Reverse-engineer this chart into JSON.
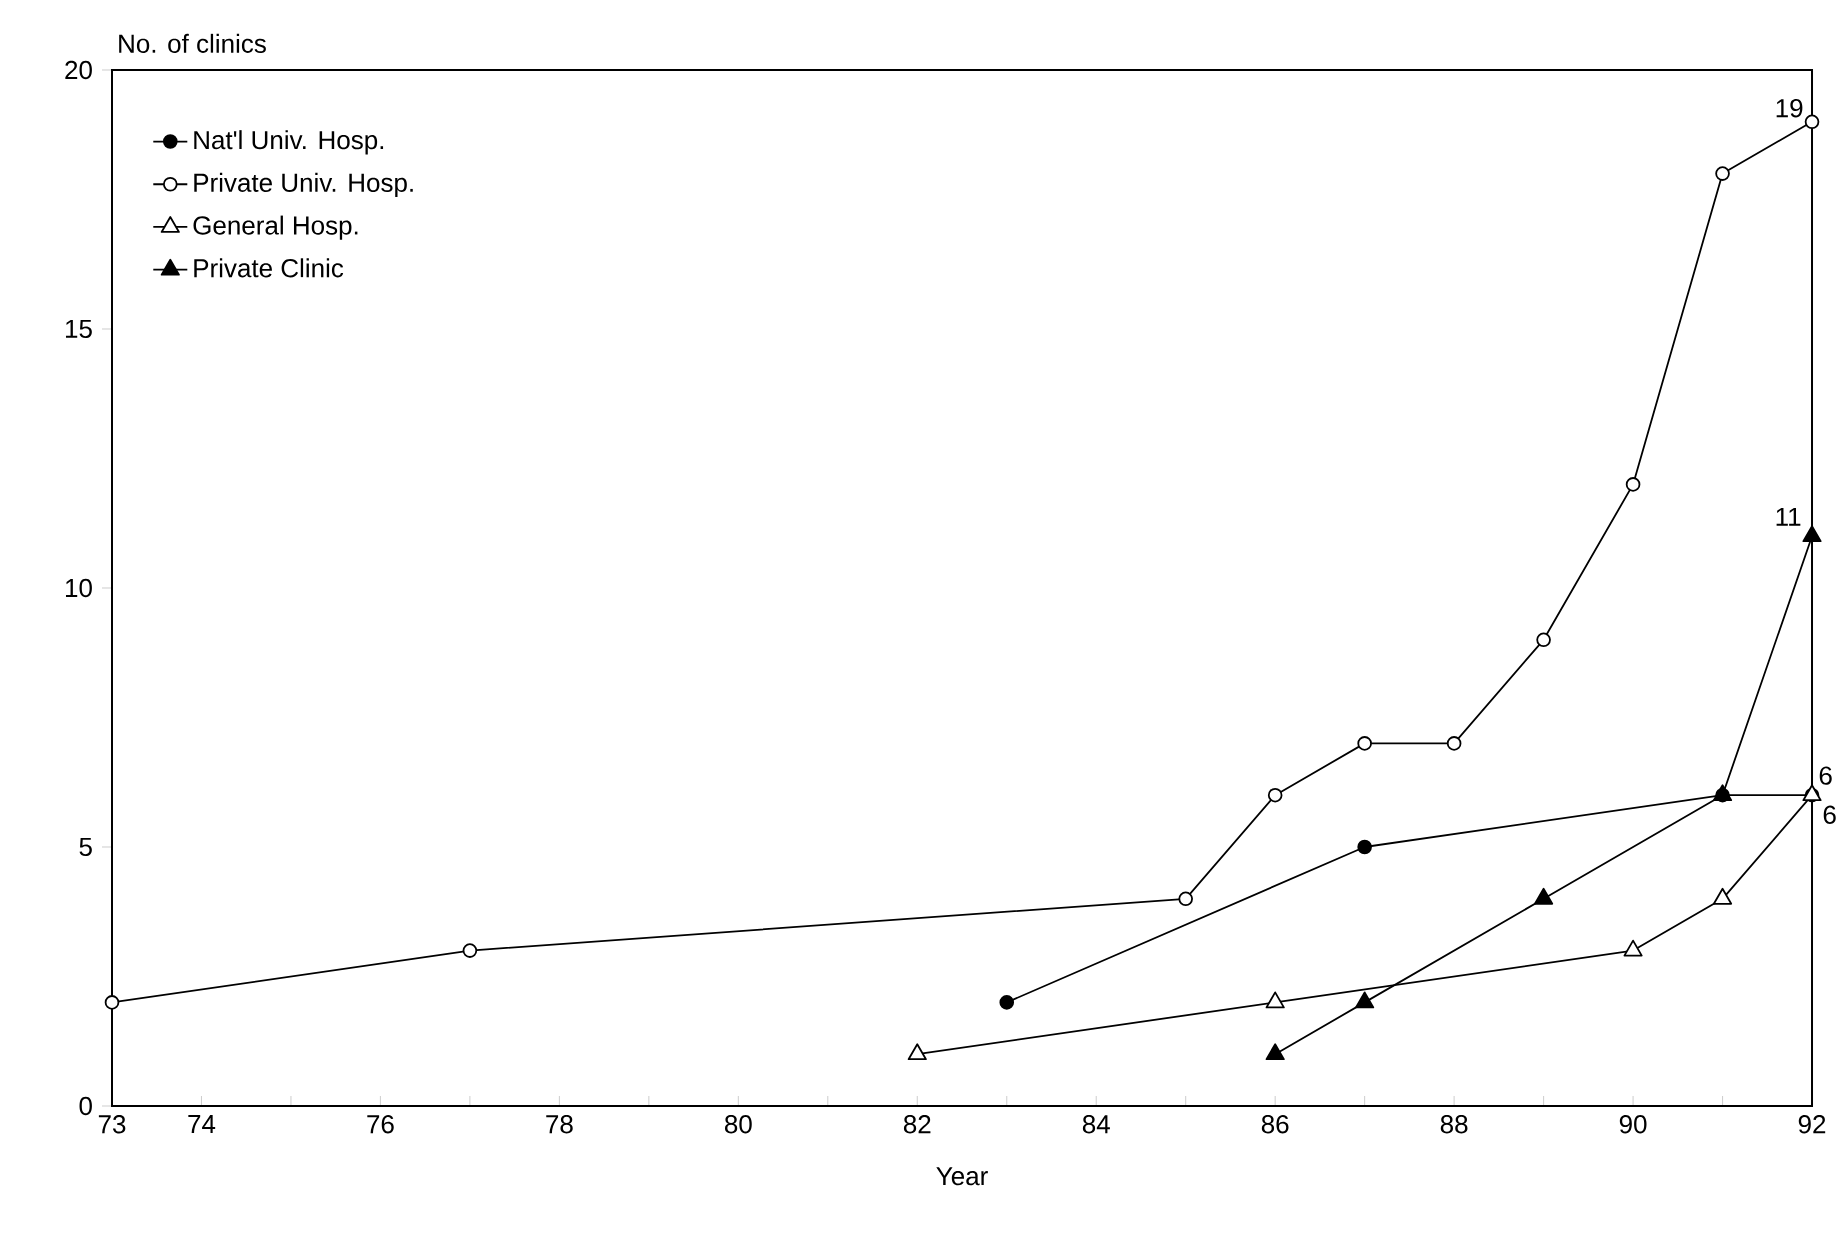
{
  "chart_data": {
    "type": "line",
    "xlabel": "Year",
    "ylabel": "No. of clinics",
    "xlim": [
      73,
      92
    ],
    "ylim": [
      0,
      20
    ],
    "xticks": [
      73,
      74,
      {
        "value": 75,
        "label": null
      },
      76,
      {
        "value": 77,
        "label": null
      },
      78,
      {
        "value": 79,
        "label": null
      },
      80,
      {
        "value": 81,
        "label": null
      },
      82,
      {
        "value": 83,
        "label": null
      },
      84,
      {
        "value": 85,
        "label": null
      },
      86,
      {
        "value": 87,
        "label": null
      },
      88,
      {
        "value": 89,
        "label": null
      },
      90,
      {
        "value": 91,
        "label": null
      },
      92
    ],
    "yticks": [
      0,
      5,
      10,
      15,
      20
    ],
    "grid": false,
    "legend": "top left",
    "line_style": "solid",
    "series": [
      {
        "name": "Nat'l Univ. Hosp.",
        "color": "#000000",
        "marker": "circle",
        "x": [
          83,
          87,
          91,
          92
        ],
        "values": [
          2,
          5,
          6,
          6
        ],
        "value_labels": [
          null,
          null,
          null,
          "6"
        ]
      },
      {
        "name": "Private Univ. Hosp.",
        "color": "#000000",
        "marker": "circle",
        "x": [
          73,
          77,
          85,
          86,
          87,
          88,
          89,
          90,
          91,
          92
        ],
        "values": [
          2,
          3,
          4,
          6,
          7,
          7,
          9,
          12,
          18,
          19
        ],
        "value_labels": [
          null,
          null,
          null,
          null,
          null,
          null,
          null,
          null,
          null,
          "19"
        ]
      },
      {
        "name": "General Hosp.",
        "color": "#000000",
        "marker": "triangle",
        "x": [
          82,
          86,
          90,
          91,
          92
        ],
        "values": [
          1,
          2,
          3,
          4,
          6
        ],
        "value_labels": [
          null,
          null,
          null,
          null,
          "6"
        ]
      },
      {
        "name": "Private Clinic",
        "color": "#000000",
        "marker": "triangle",
        "x": [
          86,
          87,
          89,
          91,
          92
        ],
        "values": [
          1,
          2,
          4,
          6,
          11
        ],
        "value_labels": [
          null,
          null,
          null,
          null,
          "11"
        ]
      }
    ]
  }
}
